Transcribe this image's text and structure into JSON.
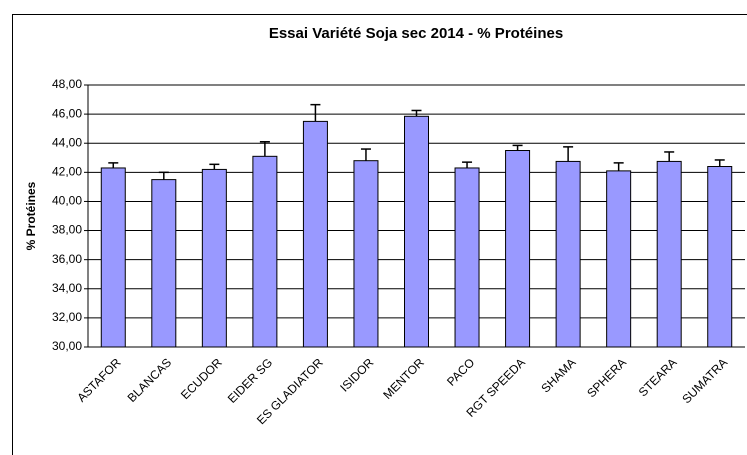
{
  "chart_data": {
    "type": "bar",
    "title": "Essai Variété Soja sec 2014 - % Protéines",
    "y_label": "% Protéines",
    "categories": [
      "ASTAFOR",
      "BLANCAS",
      "ECUDOR",
      "EIDER SG",
      "ES GLADIATOR",
      "ISIDOR",
      "MENTOR",
      "PACO",
      "RGT SPEEDA",
      "SHAMA",
      "SPHERA",
      "STEARA",
      "SUMATRA"
    ],
    "values": [
      42.3,
      41.5,
      42.2,
      43.1,
      45.5,
      42.8,
      45.85,
      42.3,
      43.5,
      42.75,
      42.1,
      42.75,
      42.4
    ],
    "errors": [
      0.35,
      0.5,
      0.35,
      1.0,
      1.15,
      0.8,
      0.4,
      0.4,
      0.35,
      1.0,
      0.55,
      0.65,
      0.45
    ],
    "color": "#9999ff",
    "ylim": [
      30,
      48
    ],
    "yticks": [
      {
        "value": 30,
        "label": "30,00"
      },
      {
        "value": 32,
        "label": "32,00"
      },
      {
        "value": 34,
        "label": "34,00"
      },
      {
        "value": 36,
        "label": "36,00"
      },
      {
        "value": 38,
        "label": "38,00"
      },
      {
        "value": 40,
        "label": "40,00"
      },
      {
        "value": 42,
        "label": "42,00"
      },
      {
        "value": 44,
        "label": "44,00"
      },
      {
        "value": 46,
        "label": "46,00"
      },
      {
        "value": 48,
        "label": "48,00"
      }
    ],
    "grid": true
  }
}
